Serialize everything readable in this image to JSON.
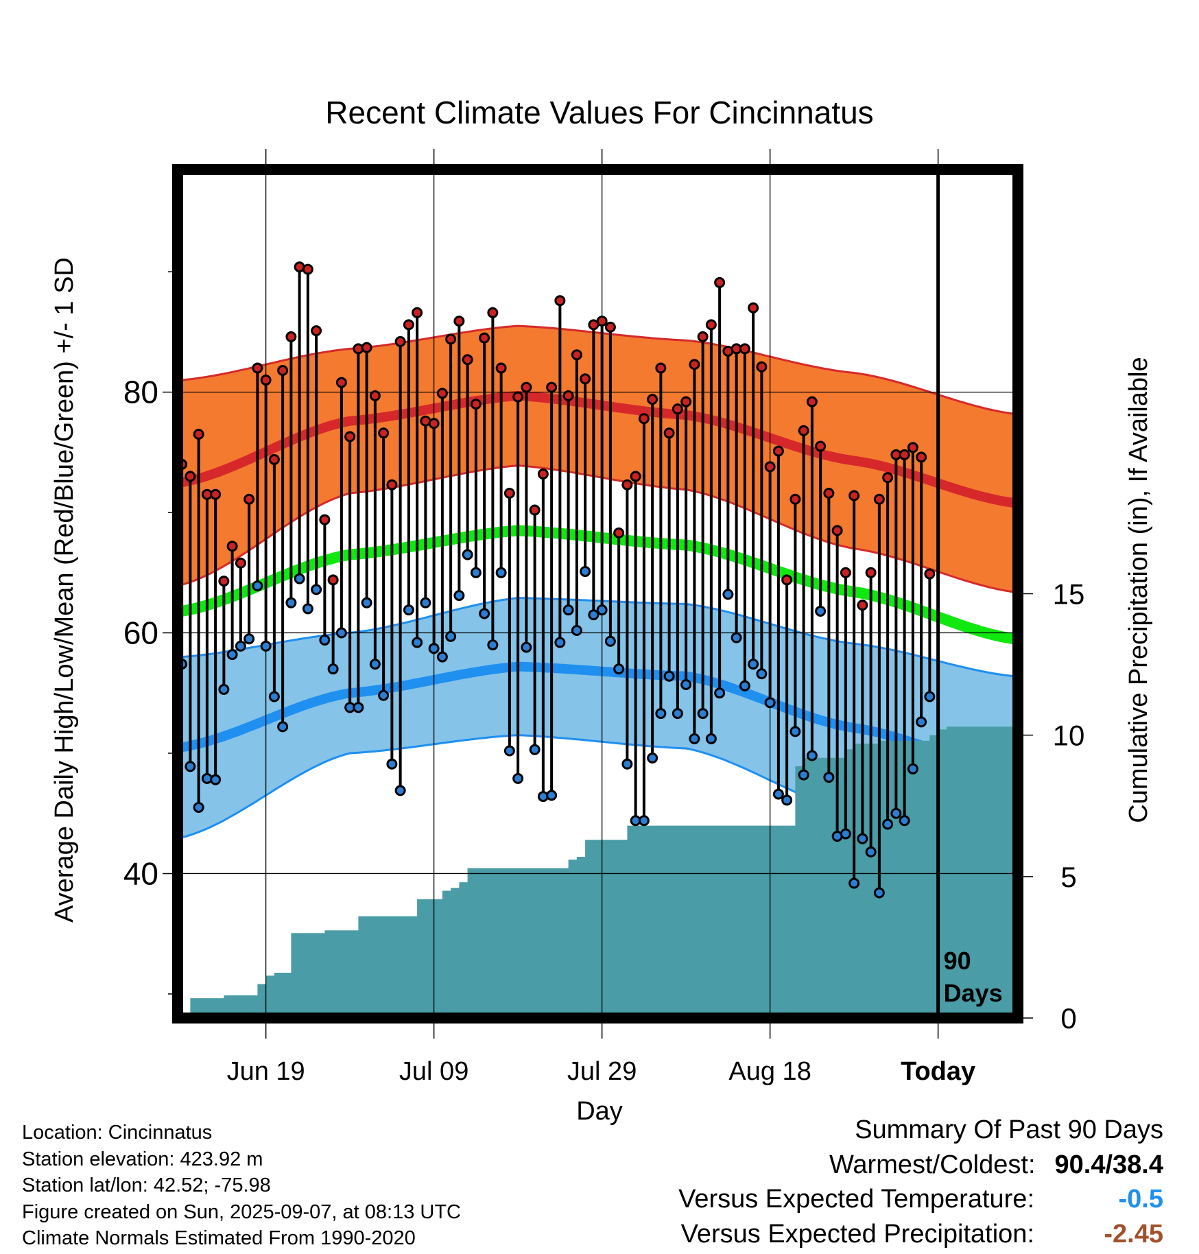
{
  "chart_data": {
    "type": "line",
    "title": "Recent Climate Values For Cincinnatus",
    "xlabel": "Day",
    "ylabel_left": "Average Daily High/Low/Mean (Red/Blue/Green) +/- 1 SD",
    "ylabel_right": "Cumulative Precipitation (in), If Available",
    "x_tick_labels": [
      "Jun 19",
      "Jul 09",
      "Jul 29",
      "Aug 18",
      "Today"
    ],
    "x_tick_days": [
      10,
      30,
      50,
      70,
      90
    ],
    "xlim": [
      -0.5,
      99.5
    ],
    "ylim_left": [
      28,
      98.5
    ],
    "y_left_ticks": [
      40,
      60,
      80
    ],
    "y_left_minor_ticks": [
      30,
      50,
      70,
      90
    ],
    "ylim_right": [
      0,
      30
    ],
    "y_right_ticks": [
      0,
      5,
      10,
      15
    ],
    "grid": true,
    "today_marker": {
      "day": 90,
      "label_line1": "90",
      "label_line2": "Days"
    },
    "colors": {
      "high_band": "#f47a30",
      "high_band_edge": "#d62a2a",
      "high_mean": "#d6282b",
      "low_band": "#85c3e8",
      "low_band_edge": "#1f8ff0",
      "low_mean": "#1f8ff0",
      "mean": "#10e810",
      "precip": "#4a9ca6",
      "high_point": "#cc2222",
      "low_point": "#2a7fd4"
    },
    "normals": {
      "days": [
        0,
        20,
        40,
        60,
        80,
        99
      ],
      "high_mean": [
        72.5,
        77.6,
        79.7,
        78.1,
        74.3,
        70.8
      ],
      "high_sd": [
        8.5,
        6.0,
        5.8,
        6.2,
        7.3,
        7.4
      ],
      "low_mean": [
        50.5,
        55.0,
        57.2,
        56.4,
        52.1,
        48.5
      ],
      "low_sd": [
        7.5,
        5.0,
        5.7,
        6.0,
        7.0,
        7.9
      ],
      "avg_mean": [
        61.8,
        66.5,
        68.5,
        67.3,
        63.4,
        59.5
      ]
    },
    "series": [
      {
        "name": "High",
        "values": [
          74.0,
          73.0,
          76.5,
          71.5,
          71.5,
          64.3,
          67.2,
          65.8,
          71.1,
          82.0,
          81.0,
          74.4,
          81.8,
          84.6,
          90.4,
          90.2,
          85.1,
          69.4,
          64.4,
          80.8,
          76.3,
          83.6,
          83.7,
          79.7,
          76.6,
          72.3,
          84.2,
          85.6,
          86.6,
          77.6,
          77.4,
          79.9,
          84.4,
          85.9,
          82.7,
          79.0,
          84.5,
          86.6,
          82.0,
          71.6,
          79.6,
          80.4,
          70.2,
          73.2,
          80.4,
          87.6,
          79.7,
          83.1,
          81.1,
          85.6,
          85.9,
          85.4,
          68.3,
          72.3,
          73.0,
          77.8,
          79.4,
          82.0,
          76.6,
          78.6,
          79.2,
          82.3,
          84.6,
          85.6,
          89.1,
          83.4,
          83.6,
          83.6,
          87.0,
          82.1,
          73.8,
          75.1,
          64.4,
          71.1,
          76.8,
          79.2,
          75.5,
          71.6,
          68.5,
          65.0,
          71.4,
          62.3,
          65.0,
          71.1,
          72.9,
          74.8,
          74.8,
          75.4,
          74.6,
          64.9
        ]
      },
      {
        "name": "Low",
        "values": [
          57.4,
          48.9,
          45.5,
          47.9,
          47.8,
          55.3,
          58.2,
          58.9,
          59.5,
          63.9,
          58.9,
          54.7,
          52.2,
          62.5,
          64.5,
          62.0,
          63.6,
          59.4,
          57.0,
          60.0,
          53.8,
          53.8,
          62.5,
          57.4,
          54.8,
          49.1,
          46.9,
          61.9,
          59.2,
          62.5,
          58.7,
          58.0,
          59.7,
          63.1,
          66.5,
          65.0,
          61.6,
          59.0,
          65.0,
          50.2,
          47.9,
          58.8,
          50.3,
          46.4,
          46.5,
          59.2,
          61.9,
          60.2,
          65.1,
          61.5,
          61.9,
          59.3,
          57.0,
          49.1,
          44.4,
          44.4,
          49.6,
          53.3,
          56.4,
          53.3,
          55.7,
          51.2,
          53.3,
          51.2,
          55.0,
          63.2,
          59.6,
          55.6,
          57.4,
          56.6,
          54.2,
          46.6,
          46.1,
          51.8,
          48.2,
          49.8,
          61.8,
          48.0,
          43.1,
          43.3,
          39.2,
          42.9,
          41.8,
          38.4,
          44.1,
          45.0,
          44.4,
          48.7,
          52.6,
          54.7
        ]
      },
      {
        "name": "Cumulative Precipitation",
        "values": [
          0.0,
          0.7,
          0.7,
          0.7,
          0.7,
          0.8,
          0.8,
          0.8,
          0.8,
          1.2,
          1.5,
          1.6,
          1.6,
          3.0,
          3.0,
          3.0,
          3.0,
          3.1,
          3.1,
          3.1,
          3.1,
          3.6,
          3.6,
          3.6,
          3.6,
          3.6,
          3.6,
          3.6,
          4.2,
          4.2,
          4.2,
          4.5,
          4.6,
          4.8,
          5.3,
          5.3,
          5.3,
          5.3,
          5.3,
          5.3,
          5.3,
          5.3,
          5.3,
          5.3,
          5.3,
          5.3,
          5.6,
          5.7,
          6.3,
          6.3,
          6.3,
          6.3,
          6.3,
          6.8,
          6.8,
          6.8,
          6.8,
          6.8,
          6.8,
          6.8,
          6.8,
          6.8,
          6.8,
          6.8,
          6.8,
          6.8,
          6.8,
          6.8,
          6.8,
          6.8,
          6.8,
          6.8,
          6.8,
          8.9,
          9.2,
          9.2,
          9.2,
          9.2,
          9.2,
          9.5,
          9.7,
          9.7,
          9.7,
          9.8,
          9.8,
          9.8,
          9.8,
          9.8,
          9.8,
          10.0,
          10.2,
          10.3,
          10.3,
          10.3,
          10.3,
          10.3,
          10.3,
          10.3,
          10.3,
          10.3
        ]
      }
    ]
  },
  "footer": {
    "location": "Location: Cincinnatus",
    "elevation": "Station elevation: 423.92 m",
    "latlon": "Station lat/lon: 42.52; -75.98",
    "created": "Figure created on Sun, 2025-09-07, at 08:13 UTC",
    "normals": "Climate Normals Estimated From 1990-2020"
  },
  "summary": {
    "title": "Summary Of Past 90 Days",
    "warm_label": "Warmest/Coldest:",
    "warm_value": "90.4/38.4",
    "temp_label": "Versus Expected Temperature:",
    "temp_value": "-0.5",
    "temp_color": "#1f8ff0",
    "precip_label": "Versus Expected Precipitation:",
    "precip_value": "-2.45",
    "precip_color": "#a0522d"
  }
}
